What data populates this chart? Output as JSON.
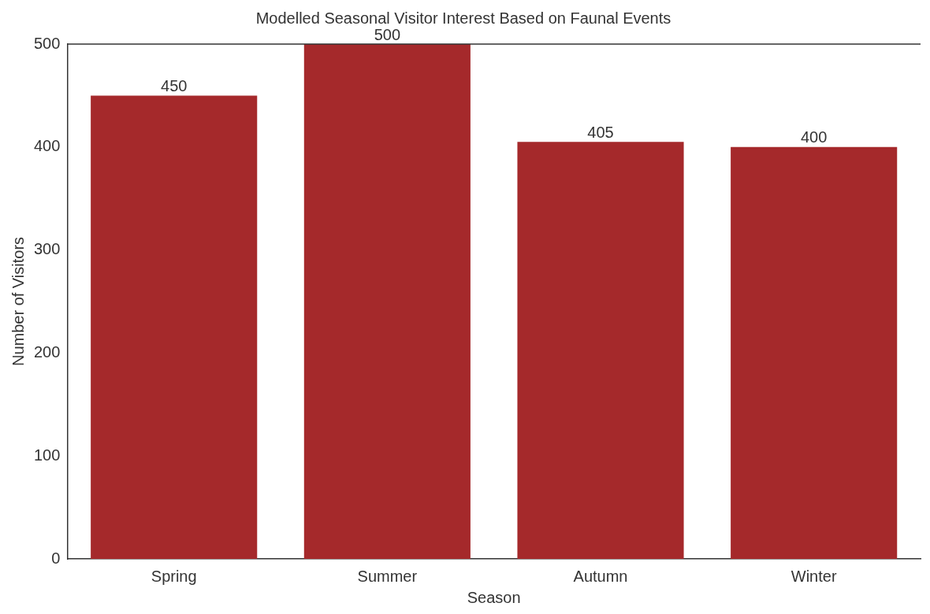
{
  "chart_data": {
    "type": "bar",
    "title": "Modelled Seasonal Visitor Interest Based on Faunal Events",
    "xlabel": "Season",
    "ylabel": "Number of Visitors",
    "categories": [
      "Spring",
      "Summer",
      "Autumn",
      "Winter"
    ],
    "values": [
      450,
      500,
      405,
      400
    ],
    "color": "#a5292b",
    "ylim": [
      0,
      500
    ],
    "yticks": [
      0,
      100,
      200,
      300,
      400,
      500
    ],
    "grid": false,
    "legend": false,
    "data_labels": true
  }
}
